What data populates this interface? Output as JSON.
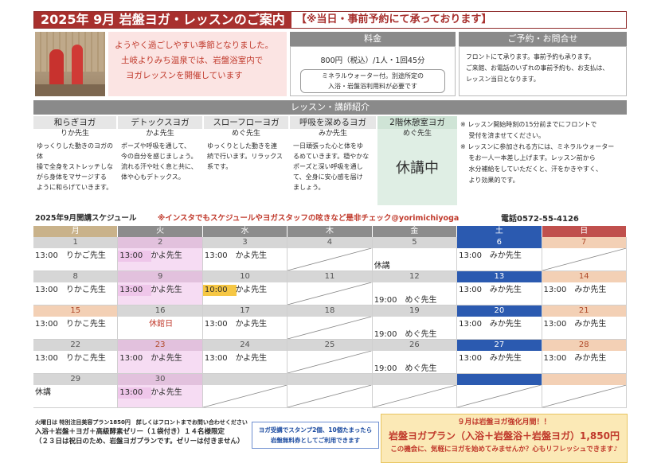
{
  "header": {
    "title": "2025年 9月 岩盤ヨガ・レッスンのご案内",
    "note": "【※当日・事前予約にて承っております】"
  },
  "intro": [
    "ようやく過ごしやすい季節となりました。",
    "土岐よりみち温泉では、岩盤浴室内で",
    "ヨガレッスンを開催しています"
  ],
  "price": {
    "heading": "料金",
    "line": "800円（税込）/1人・1回45分",
    "detail": [
      "ミネラルウォーター付。別途所定の",
      "入浴・岩盤浴利用料が必要です"
    ]
  },
  "reservation": {
    "heading": "ご予約・お問合せ",
    "lines": [
      "フロントにて承ります。事前予約も承ります。",
      "ご来館、お電話のいずれの事前予約も、お支払は、",
      "レッスン当日となります。"
    ]
  },
  "lessons_heading": "レッスン・講師紹介",
  "lessons": [
    {
      "name": "和らぎヨガ",
      "teacher": "りか先生",
      "desc": [
        "ゆっくりした動きのヨガの体",
        "操で全身をストレッチしな",
        "がら身体をマサージする",
        "ように和らげていきます。"
      ]
    },
    {
      "name": "デトックスヨガ",
      "teacher": "かよ先生",
      "desc": [
        "ポーズや呼吸を通して、",
        "今の自分を感じましょう。",
        "流れる汗や吐く息と共に、",
        "体や心もデトックス。"
      ]
    },
    {
      "name": "スローフローヨガ",
      "teacher": "めぐ先生",
      "desc": [
        "ゆっくりとした動きを連",
        "続で行います。リラックス",
        "系です。"
      ]
    },
    {
      "name": "呼吸を深めるヨガ",
      "teacher": "みか先生",
      "desc": [
        "一日頑張った心と体をゆ",
        "るめていきます。穏やかな",
        "ポーズと深い呼吸を通し",
        "て、全身に安心感を届け",
        "ましょう。"
      ]
    },
    {
      "name": "2階休憩室ヨガ",
      "teacher": "めぐ先生",
      "status": "休講中"
    }
  ],
  "notes": [
    "※ レッスン開始時刻の15分前までにフロントで",
    "　 受付を済ませてください。",
    "※ レッスンに参加される方には、ミネラルウォーター",
    "　 をお一人一本差し上げます。レッスン前から",
    "　 水分補給をしていただくと、汗をかきやすく、",
    "　 より効果的です。"
  ],
  "schedule": {
    "title": "2025年9月開講スケジュール",
    "insta": "※インスタでもスケジュールやヨガスタッフの呟きなど是非チェック@yorimichiyoga",
    "phone": "電話0572-55-4126"
  },
  "weekdays": [
    "月",
    "火",
    "水",
    "木",
    "金",
    "土",
    "日"
  ],
  "weeks": [
    [
      {
        "d": "1",
        "ev": "13:00　りかご先生"
      },
      {
        "d": "2",
        "ev": "13:00　かよ先生",
        "pink": true,
        "hl": "pk"
      },
      {
        "d": "3",
        "ev": "13:00　かよ先生"
      },
      {
        "d": "4",
        "slash": true
      },
      {
        "d": "5",
        "ev": "休講",
        "low": true
      },
      {
        "d": "6",
        "ev": "13:00　みか先生",
        "sat": true
      },
      {
        "d": "7",
        "sun": true,
        "slash": true
      }
    ],
    [
      {
        "d": "8",
        "ev": "13:00　りかこ先生"
      },
      {
        "d": "9",
        "ev": "13:00　かよ先生",
        "pink": true,
        "hl": "pk"
      },
      {
        "d": "10",
        "ev": "10:00　かよ先生",
        "hl": "hi"
      },
      {
        "d": "11",
        "slash": true
      },
      {
        "d": "12",
        "ev": "19:00　めぐ先生",
        "low": true
      },
      {
        "d": "13",
        "ev": "13:00　みか先生",
        "sat": true
      },
      {
        "d": "14",
        "ev": "13:00　みか先生",
        "sun": true
      }
    ],
    [
      {
        "d": "15",
        "ev": "13:00　りかこ先生",
        "sunhdr": true
      },
      {
        "d": "16",
        "ev": "休館日",
        "closed": true
      },
      {
        "d": "17",
        "ev": "13:00　かよ先生"
      },
      {
        "d": "18",
        "slash": true
      },
      {
        "d": "19",
        "ev": "19:00　めぐ先生",
        "low": true
      },
      {
        "d": "20",
        "ev": "13:00　みか先生",
        "sat": true
      },
      {
        "d": "21",
        "ev": "13:00　みか先生",
        "sun": true
      }
    ],
    [
      {
        "d": "22",
        "ev": "13:00　りかこ先生"
      },
      {
        "d": "23",
        "ev": "13:00　かよ先生",
        "pink": true,
        "sunhdr": true
      },
      {
        "d": "24",
        "ev": "13:00　かよ先生"
      },
      {
        "d": "25",
        "slash": true
      },
      {
        "d": "26",
        "ev": "19:00　めぐ先生",
        "low": true
      },
      {
        "d": "27",
        "ev": "13:00　みか先生",
        "sat": true
      },
      {
        "d": "28",
        "ev": "13:00　みか先生",
        "sun": true
      }
    ],
    [
      {
        "d": "29",
        "ev": "休講"
      },
      {
        "d": "30",
        "ev": "13:00　かよ先生",
        "pink": true,
        "hl": "pk"
      },
      {
        "d": "",
        "slash": true
      },
      {
        "d": "",
        "slash": true
      },
      {
        "d": "",
        "slash": true
      },
      {
        "d": "",
        "slash": true,
        "sat": true
      },
      {
        "d": "",
        "slash": true,
        "sun": true
      }
    ]
  ],
  "footer": {
    "left": [
      "火曜日は 特別注目美容プラン1850円　詳しくはフロントまでお問い合わせください",
      "入浴＋岩盤＋ヨガ＋高級酵素ゼリー（１袋付き）１４名様限定",
      "（２３日は祝日のため、岩盤ヨガプランです。ゼリーは付きません）"
    ],
    "middle": [
      "ヨガ受講でスタンプ2個、10個たまったら",
      "岩盤無料券としてご利用できます"
    ],
    "right": {
      "a": "９月は岩盤ヨガ強化月間！！",
      "b": "岩盤ヨガプラン（入浴＋岩盤浴＋岩盤ヨガ）1,850円",
      "c": "この機会に、気軽にヨガを始めてみませんか？心もリフレッシュできます♪"
    }
  }
}
